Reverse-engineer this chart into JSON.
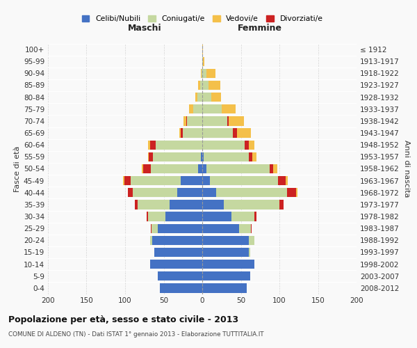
{
  "age_groups": [
    "0-4",
    "5-9",
    "10-14",
    "15-19",
    "20-24",
    "25-29",
    "30-34",
    "35-39",
    "40-44",
    "45-49",
    "50-54",
    "55-59",
    "60-64",
    "65-69",
    "70-74",
    "75-79",
    "80-84",
    "85-89",
    "90-94",
    "95-99",
    "100+"
  ],
  "birth_years": [
    "2008-2012",
    "2003-2007",
    "1998-2002",
    "1993-1997",
    "1988-1992",
    "1983-1987",
    "1978-1982",
    "1973-1977",
    "1968-1972",
    "1963-1967",
    "1958-1962",
    "1953-1957",
    "1948-1952",
    "1943-1947",
    "1938-1942",
    "1933-1937",
    "1928-1932",
    "1923-1927",
    "1918-1922",
    "1913-1917",
    "≤ 1912"
  ],
  "maschi": {
    "celibi": [
      55,
      58,
      68,
      62,
      65,
      58,
      48,
      42,
      32,
      28,
      5,
      2,
      0,
      0,
      0,
      0,
      0,
      0,
      0,
      0,
      0
    ],
    "coniugati": [
      0,
      0,
      0,
      0,
      3,
      8,
      22,
      42,
      58,
      65,
      62,
      62,
      60,
      25,
      20,
      12,
      6,
      3,
      1,
      0,
      0
    ],
    "vedovi": [
      0,
      0,
      0,
      0,
      0,
      0,
      0,
      0,
      0,
      2,
      1,
      1,
      2,
      2,
      3,
      5,
      3,
      2,
      1,
      0,
      0
    ],
    "divorziati": [
      0,
      0,
      0,
      0,
      0,
      1,
      2,
      3,
      6,
      8,
      10,
      5,
      8,
      3,
      1,
      0,
      0,
      0,
      0,
      0,
      0
    ]
  },
  "femmine": {
    "nubili": [
      58,
      62,
      68,
      60,
      60,
      48,
      38,
      28,
      18,
      10,
      5,
      2,
      0,
      0,
      0,
      0,
      0,
      0,
      0,
      0,
      0
    ],
    "coniugate": [
      0,
      0,
      0,
      2,
      8,
      15,
      30,
      72,
      92,
      88,
      82,
      58,
      55,
      40,
      32,
      25,
      12,
      8,
      5,
      1,
      0
    ],
    "vedove": [
      0,
      0,
      0,
      0,
      0,
      0,
      0,
      0,
      1,
      3,
      5,
      5,
      8,
      18,
      20,
      18,
      12,
      15,
      12,
      2,
      1
    ],
    "divorziate": [
      0,
      0,
      0,
      0,
      0,
      1,
      2,
      5,
      12,
      10,
      5,
      5,
      5,
      5,
      2,
      0,
      0,
      0,
      0,
      0,
      0
    ]
  },
  "colors": {
    "celibi": "#4472c4",
    "coniugati": "#c5d8a0",
    "vedovi": "#f4c04a",
    "divorziati": "#cc2222"
  },
  "xlim": 200,
  "title": "Popolazione per età, sesso e stato civile - 2013",
  "subtitle": "COMUNE DI ALDENO (TN) - Dati ISTAT 1° gennaio 2013 - Elaborazione TUTTITALIA.IT",
  "ylabel_left": "Fasce di età",
  "ylabel_right": "Anni di nascita",
  "legend_labels": [
    "Celibi/Nubili",
    "Coniugati/e",
    "Vedovi/e",
    "Divorziati/e"
  ],
  "bg_color": "#f9f9f9",
  "grid_color": "#cccccc"
}
